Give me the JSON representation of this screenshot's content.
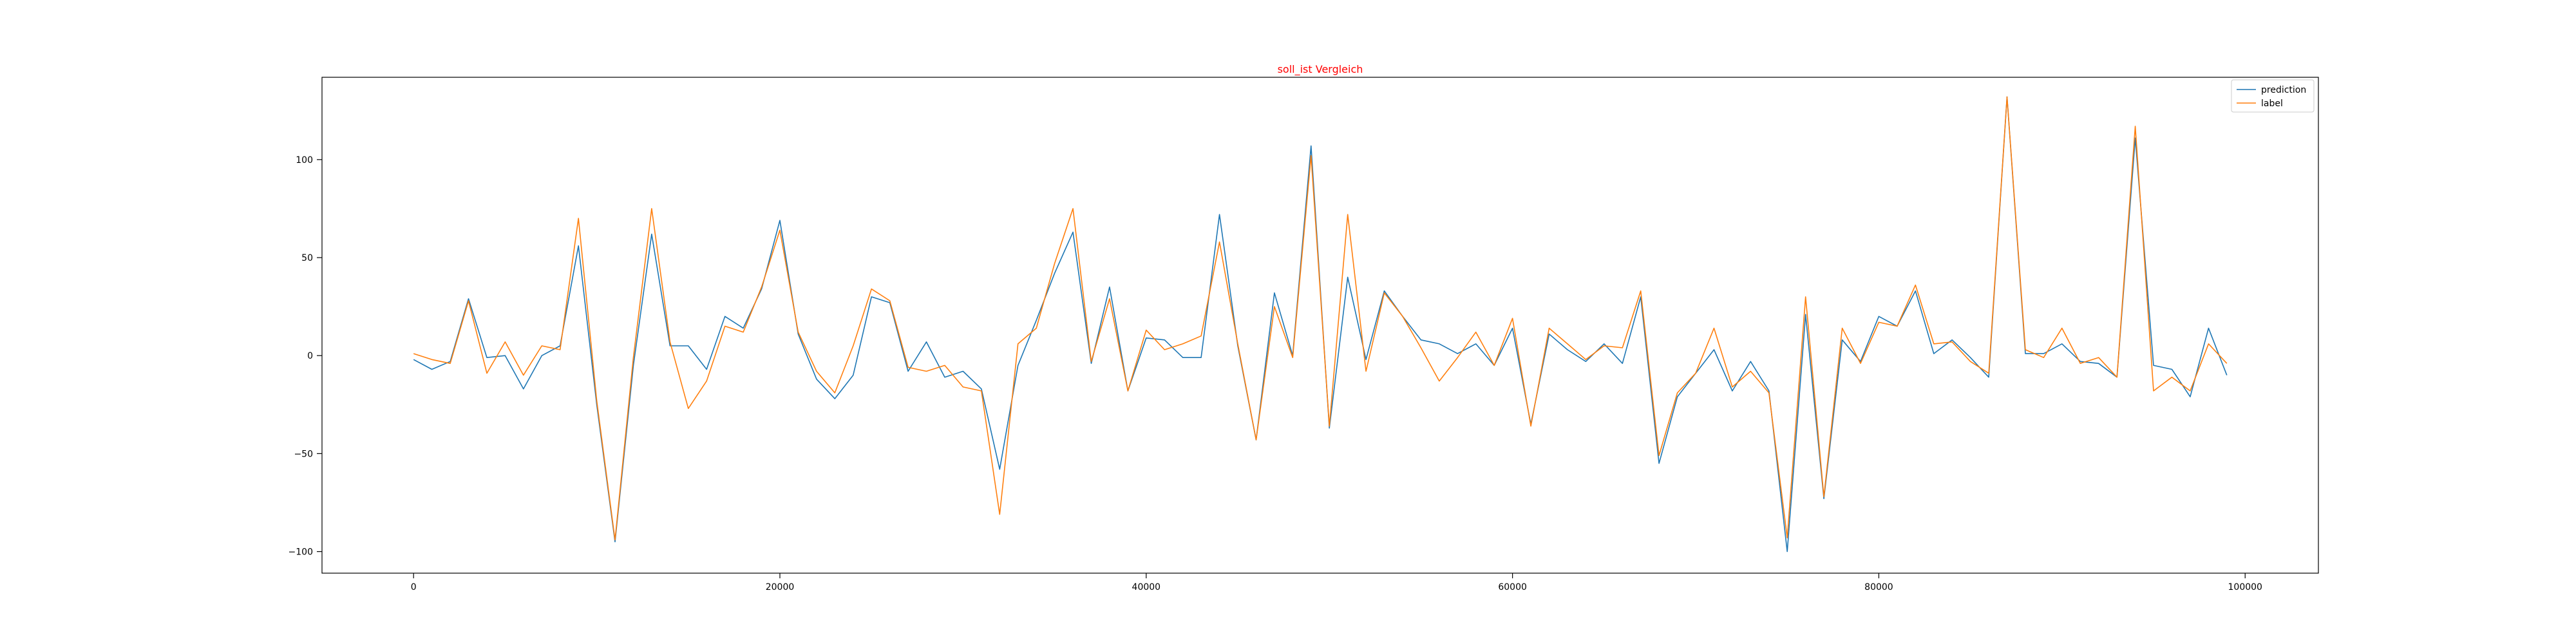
{
  "chart_data": {
    "type": "line",
    "title": "soll_ist Vergleich",
    "title_color": "#ff0000",
    "xlabel": "",
    "ylabel": "",
    "xlim": [
      -5000,
      104000
    ],
    "ylim": [
      -111,
      142
    ],
    "x_ticks": [
      0,
      20000,
      40000,
      60000,
      80000,
      100000
    ],
    "x_tick_labels": [
      "0",
      "20000",
      "40000",
      "60000",
      "80000",
      "100000"
    ],
    "y_ticks": [
      -100,
      -50,
      0,
      50,
      100
    ],
    "y_tick_labels": [
      "−100",
      "−50",
      "0",
      "50",
      "100"
    ],
    "grid": false,
    "legend_position": "top-right",
    "x": [
      0,
      1000,
      2000,
      3000,
      4000,
      5000,
      6000,
      7000,
      8000,
      9000,
      10000,
      11000,
      12000,
      13000,
      14000,
      15000,
      16000,
      17000,
      18000,
      19000,
      20000,
      21000,
      22000,
      23000,
      24000,
      25000,
      26000,
      27000,
      28000,
      29000,
      30000,
      31000,
      32000,
      33000,
      34000,
      35000,
      36000,
      37000,
      38000,
      39000,
      40000,
      41000,
      42000,
      43000,
      44000,
      45000,
      46000,
      47000,
      48000,
      49000,
      50000,
      51000,
      52000,
      53000,
      54000,
      55000,
      56000,
      57000,
      58000,
      59000,
      60000,
      61000,
      62000,
      63000,
      64000,
      65000,
      66000,
      67000,
      68000,
      69000,
      70000,
      71000,
      72000,
      73000,
      74000,
      75000,
      76000,
      77000,
      78000,
      79000,
      80000,
      81000,
      82000,
      83000,
      84000,
      85000,
      86000,
      87000,
      88000,
      89000,
      90000,
      91000,
      92000,
      93000,
      94000,
      95000,
      96000,
      97000,
      98000,
      99000
    ],
    "series": [
      {
        "name": "prediction",
        "color": "#1f77b4",
        "values": [
          -2,
          -7,
          -3,
          29,
          -1,
          0,
          -17,
          0,
          5,
          56,
          -25,
          -95,
          -5,
          62,
          5,
          5,
          -7,
          20,
          14,
          34,
          69,
          11,
          -12,
          -22,
          -10,
          30,
          27,
          -8,
          7,
          -11,
          -8,
          -17,
          -58,
          -5,
          18,
          42,
          63,
          -4,
          35,
          -18,
          9,
          8,
          -1,
          -1,
          72,
          5,
          -43,
          32,
          0,
          107,
          -37,
          40,
          -2,
          33,
          20,
          8,
          6,
          1,
          6,
          -5,
          14,
          -35,
          11,
          3,
          -3,
          6,
          -4,
          30,
          -55,
          -21,
          -9,
          3,
          -18,
          -3,
          -18,
          -100,
          21,
          -73,
          8,
          -3,
          20,
          15,
          33,
          1,
          8,
          -1,
          -11,
          132,
          1,
          1,
          6,
          -3,
          -4,
          -11,
          111,
          -5,
          -7,
          -21,
          14,
          -10
        ],
        "values_ref": "chart_data.series.0.values"
      },
      {
        "name": "label",
        "color": "#ff7f0e",
        "values": [
          1,
          -2,
          -4,
          28,
          -9,
          7,
          -10,
          5,
          3,
          70,
          -23,
          -94,
          -1,
          75,
          7,
          -27,
          -13,
          15,
          12,
          35,
          64,
          12,
          -8,
          -19,
          5,
          34,
          28,
          -6,
          -8,
          -5,
          -16,
          -18,
          -81,
          6,
          14,
          47,
          75,
          -3,
          29,
          -18,
          13,
          3,
          6,
          10,
          58,
          6,
          -43,
          25,
          -1,
          102,
          -36,
          72,
          -8,
          32,
          20,
          4,
          -13,
          -1,
          12,
          -5,
          19,
          -36,
          14,
          6,
          -2,
          5,
          4,
          33,
          -51,
          -19,
          -9,
          14,
          -16,
          -8,
          -19,
          -93,
          30,
          -72,
          14,
          -4,
          17,
          15,
          36,
          6,
          7,
          -3,
          -9,
          132,
          3,
          -1,
          14,
          -4,
          -1,
          -11,
          117,
          -18,
          -11,
          -18,
          6,
          -4
        ]
      }
    ]
  }
}
